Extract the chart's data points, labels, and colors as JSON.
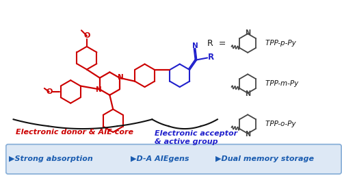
{
  "bg_color": "#ffffff",
  "red_color": "#cc0000",
  "blue_color": "#2020cc",
  "black_color": "#111111",
  "gray_color": "#444444",
  "bottom_bar_color": "#dde8f5",
  "bottom_bar_text_color": "#1a5cb0",
  "bottom_bar_border_color": "#8ab0d8",
  "bottom_items": [
    "▶Strong absorption",
    "▶D-A AIEgens",
    "▶Dual memory storage"
  ],
  "label_donor": "Electronic donor & AIE core",
  "label_acceptor": "Electronic acceptor\n& active group",
  "tpp_labels": [
    "TPP-p-Py",
    "TPP-m-Py",
    "TPP-o-Py"
  ],
  "figsize": [
    5.0,
    2.57
  ],
  "dpi": 100
}
